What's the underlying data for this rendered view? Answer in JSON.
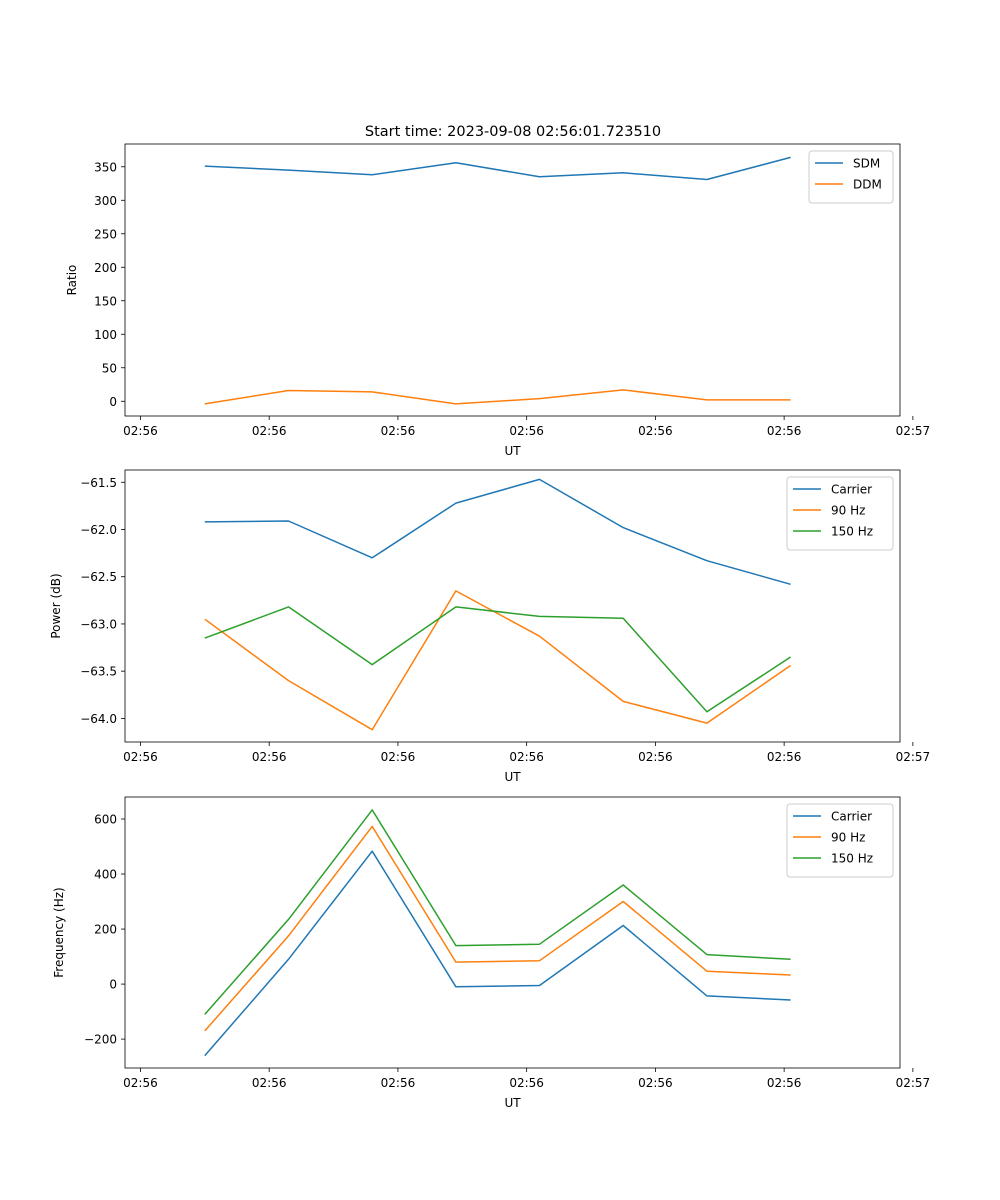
{
  "figure_title": "Start time: 2023-09-08 02:56:01.723510",
  "colors": {
    "blue": "#1f77b4",
    "orange": "#ff7f0e",
    "green": "#2ca02c"
  },
  "chart_data": [
    {
      "type": "line",
      "title": "Start time: 2023-09-08 02:56:01.723510",
      "xlabel": "UT",
      "ylabel": "Ratio",
      "x": [
        0.5,
        1.15,
        1.8,
        2.45,
        3.1,
        3.75,
        4.4,
        5.05
      ],
      "xlim": [
        -0.12,
        5.9
      ],
      "xticks": [
        0,
        1,
        2,
        3,
        4,
        5,
        6
      ],
      "xtick_labels": [
        "02:56",
        "02:56",
        "02:56",
        "02:56",
        "02:56",
        "02:56",
        "02:57"
      ],
      "ylim": [
        -22,
        384
      ],
      "yticks": [
        0,
        50,
        100,
        150,
        200,
        250,
        300,
        350
      ],
      "ytick_labels": [
        "0",
        "50",
        "100",
        "150",
        "200",
        "250",
        "300",
        "350"
      ],
      "legend": "top-right",
      "series": [
        {
          "name": "SDM",
          "color": "#1f77b4",
          "values": [
            351,
            345,
            338,
            356,
            335,
            341,
            331,
            364
          ]
        },
        {
          "name": "DDM",
          "color": "#ff7f0e",
          "values": [
            -4,
            16,
            14,
            -4,
            4,
            17,
            2,
            2
          ]
        }
      ]
    },
    {
      "type": "line",
      "title": "",
      "xlabel": "UT",
      "ylabel": "Power (dB)",
      "x": [
        0.5,
        1.15,
        1.8,
        2.45,
        3.1,
        3.75,
        4.4,
        5.05
      ],
      "xlim": [
        -0.12,
        5.9
      ],
      "xticks": [
        0,
        1,
        2,
        3,
        4,
        5,
        6
      ],
      "xtick_labels": [
        "02:56",
        "02:56",
        "02:56",
        "02:56",
        "02:56",
        "02:56",
        "02:57"
      ],
      "ylim": [
        -64.25,
        -61.37
      ],
      "yticks": [
        -64.0,
        -63.5,
        -63.0,
        -62.5,
        -62.0,
        -61.5
      ],
      "ytick_labels": [
        "−64.0",
        "−63.5",
        "−63.0",
        "−62.5",
        "−62.0",
        "−61.5"
      ],
      "legend": "top-right",
      "series": [
        {
          "name": "Carrier",
          "color": "#1f77b4",
          "values": [
            -61.92,
            -61.91,
            -62.3,
            -61.72,
            -61.47,
            -61.98,
            -62.33,
            -62.58
          ]
        },
        {
          "name": "90 Hz",
          "color": "#ff7f0e",
          "values": [
            -62.95,
            -63.6,
            -64.12,
            -62.65,
            -63.13,
            -63.82,
            -64.05,
            -63.44
          ]
        },
        {
          "name": "150 Hz",
          "color": "#2ca02c",
          "values": [
            -63.15,
            -62.82,
            -63.43,
            -62.82,
            -62.92,
            -62.94,
            -63.93,
            -63.35
          ]
        }
      ]
    },
    {
      "type": "line",
      "title": "",
      "xlabel": "UT",
      "ylabel": "Frequency (Hz)",
      "x": [
        0.5,
        1.15,
        1.8,
        2.45,
        3.1,
        3.75,
        4.4,
        5.05
      ],
      "xlim": [
        -0.12,
        5.9
      ],
      "xticks": [
        0,
        1,
        2,
        3,
        4,
        5,
        6
      ],
      "xtick_labels": [
        "02:56",
        "02:56",
        "02:56",
        "02:56",
        "02:56",
        "02:56",
        "02:57"
      ],
      "ylim": [
        -305,
        680
      ],
      "yticks": [
        -200,
        0,
        200,
        400,
        600
      ],
      "ytick_labels": [
        "−200",
        "0",
        "200",
        "400",
        "600"
      ],
      "legend": "top-right",
      "series": [
        {
          "name": "Carrier",
          "color": "#1f77b4",
          "values": [
            -260,
            90,
            483,
            -10,
            -5,
            213,
            -43,
            -58
          ]
        },
        {
          "name": "90 Hz",
          "color": "#ff7f0e",
          "values": [
            -170,
            175,
            573,
            80,
            85,
            300,
            47,
            33
          ]
        },
        {
          "name": "150 Hz",
          "color": "#2ca02c",
          "values": [
            -110,
            235,
            633,
            140,
            145,
            360,
            107,
            90
          ]
        }
      ]
    }
  ]
}
